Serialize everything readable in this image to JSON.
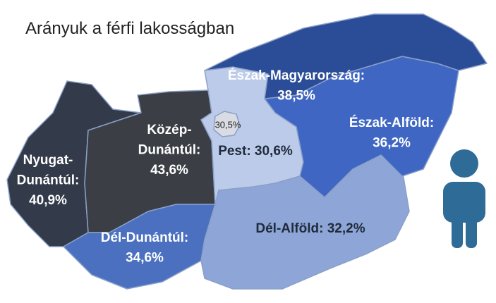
{
  "title": "Arányuk a férfi lakosságban",
  "regions": [
    {
      "lines": [
        "Nyugat-",
        "Dunántúl:",
        "40,9%"
      ],
      "color": "#333a49"
    },
    {
      "lines": [
        "Közép-",
        "Dunántúl:",
        "43,6%"
      ],
      "color": "#3b3e45"
    },
    {
      "lines": [
        "Dél-Dunántúl:",
        "34,6%"
      ],
      "color": "#4b70c0"
    },
    {
      "lines": [
        "Pest: 30,6%"
      ],
      "color": "#bccbe9"
    },
    {
      "lines": [
        "Dél-Alföld: 32,2%"
      ],
      "color": "#8ea6d7"
    },
    {
      "lines": [
        "Észak-Alföld:",
        "36,2%"
      ],
      "color": "#3f66c2"
    },
    {
      "lines": [
        "Észak-Magyarország:",
        "38,5%"
      ],
      "color": "#2b4c96"
    }
  ],
  "capital": {
    "label": "30,5%",
    "color": "#d9dde3"
  }
}
